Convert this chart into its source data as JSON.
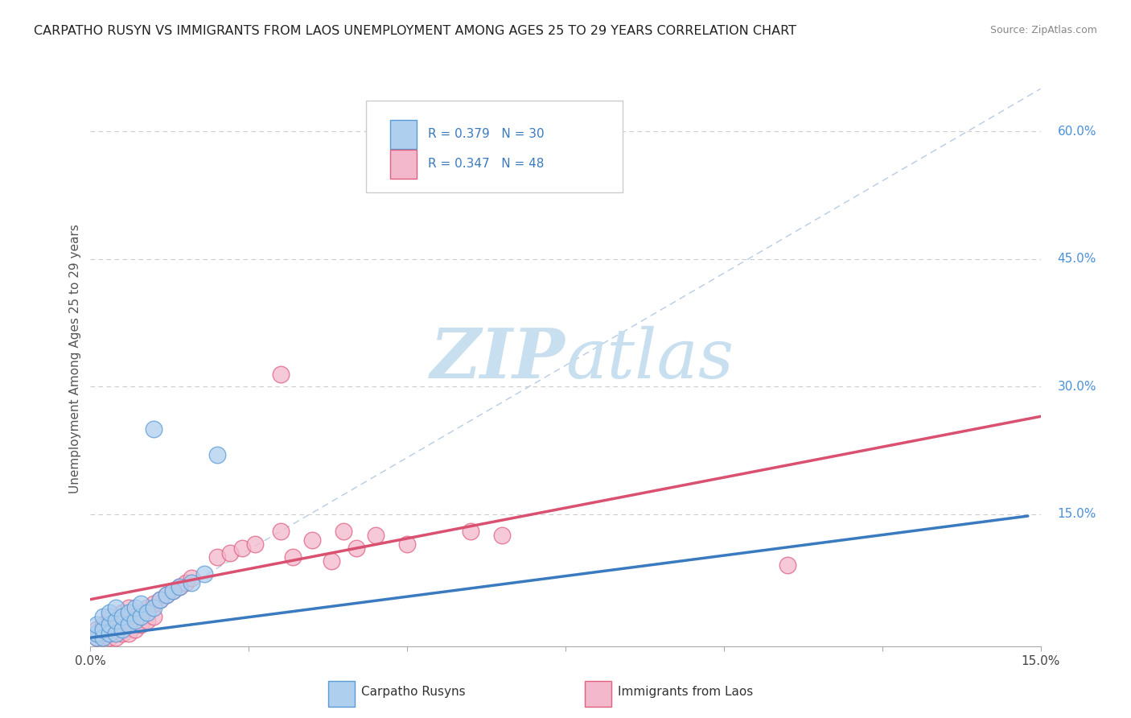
{
  "title": "CARPATHO RUSYN VS IMMIGRANTS FROM LAOS UNEMPLOYMENT AMONG AGES 25 TO 29 YEARS CORRELATION CHART",
  "source": "Source: ZipAtlas.com",
  "ylabel": "Unemployment Among Ages 25 to 29 years",
  "xlim": [
    0,
    0.15
  ],
  "ylim": [
    -0.005,
    0.67
  ],
  "ytick_positions": [
    0.15,
    0.3,
    0.45,
    0.6
  ],
  "ytick_labels": [
    "15.0%",
    "30.0%",
    "45.0%",
    "60.0%"
  ],
  "r_rusyn": 0.379,
  "n_rusyn": 30,
  "r_laos": 0.347,
  "n_laos": 48,
  "color_rusyn_fill": "#aecfee",
  "color_rusyn_edge": "#5b9bd5",
  "color_rusyn_line": "#3a7abf",
  "color_laos_fill": "#f4b8cc",
  "color_laos_edge": "#e06080",
  "color_laos_line": "#d95070",
  "legend_text_color": "#3a7abf",
  "watermark_color": "#d6e8f5",
  "background": "#ffffff",
  "grid_color": "#cccccc",
  "diag_color": "#b8cce4",
  "rusyn_x": [
    0.001,
    0.001,
    0.001,
    0.002,
    0.002,
    0.002,
    0.003,
    0.003,
    0.003,
    0.004,
    0.004,
    0.004,
    0.005,
    0.005,
    0.006,
    0.006,
    0.007,
    0.007,
    0.008,
    0.008,
    0.009,
    0.01,
    0.011,
    0.012,
    0.013,
    0.014,
    0.016,
    0.018,
    0.01,
    0.02
  ],
  "rusyn_y": [
    0.005,
    0.01,
    0.02,
    0.005,
    0.015,
    0.03,
    0.01,
    0.02,
    0.035,
    0.01,
    0.025,
    0.04,
    0.015,
    0.03,
    0.02,
    0.035,
    0.025,
    0.04,
    0.03,
    0.045,
    0.035,
    0.04,
    0.05,
    0.055,
    0.06,
    0.065,
    0.07,
    0.08,
    0.25,
    0.22
  ],
  "laos_x": [
    0.001,
    0.001,
    0.002,
    0.002,
    0.002,
    0.003,
    0.003,
    0.003,
    0.003,
    0.004,
    0.004,
    0.004,
    0.005,
    0.005,
    0.005,
    0.006,
    0.006,
    0.006,
    0.007,
    0.007,
    0.008,
    0.008,
    0.009,
    0.009,
    0.01,
    0.01,
    0.011,
    0.012,
    0.013,
    0.014,
    0.015,
    0.016,
    0.02,
    0.022,
    0.024,
    0.026,
    0.03,
    0.032,
    0.035,
    0.038,
    0.04,
    0.042,
    0.045,
    0.05,
    0.06,
    0.065,
    0.03,
    0.11
  ],
  "laos_y": [
    0.005,
    0.015,
    0.005,
    0.01,
    0.02,
    0.005,
    0.01,
    0.02,
    0.03,
    0.005,
    0.015,
    0.025,
    0.01,
    0.02,
    0.035,
    0.01,
    0.025,
    0.04,
    0.015,
    0.03,
    0.02,
    0.035,
    0.025,
    0.04,
    0.03,
    0.045,
    0.05,
    0.055,
    0.06,
    0.065,
    0.07,
    0.075,
    0.1,
    0.105,
    0.11,
    0.115,
    0.13,
    0.1,
    0.12,
    0.095,
    0.13,
    0.11,
    0.125,
    0.115,
    0.13,
    0.125,
    0.315,
    0.09
  ],
  "rusyn_trendline": [
    0.0,
    0.148
  ],
  "rusyn_trend_y": [
    0.005,
    0.148
  ],
  "laos_trendline": [
    0.0,
    0.15
  ],
  "laos_trend_y": [
    0.05,
    0.265
  ]
}
